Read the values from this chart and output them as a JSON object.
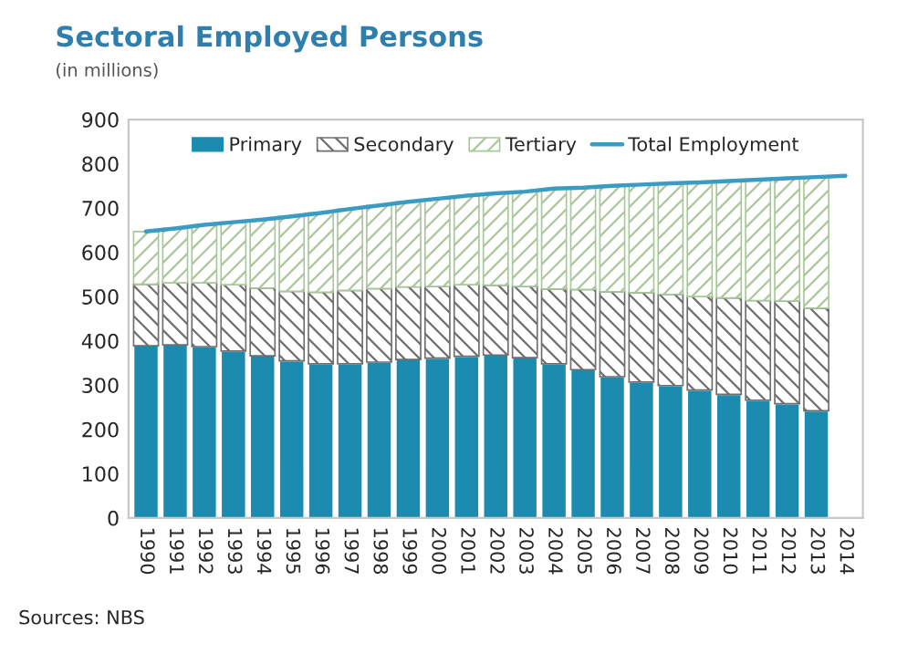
{
  "chart_data": {
    "type": "bar",
    "title": "Sectoral Employed Persons",
    "subtitle": "(in millions)",
    "categories": [
      "1990",
      "1991",
      "1992",
      "1993",
      "1994",
      "1995",
      "1996",
      "1997",
      "1998",
      "1999",
      "2000",
      "2001",
      "2002",
      "2003",
      "2004",
      "2005",
      "2006",
      "2007",
      "2008",
      "2009",
      "2010",
      "2011",
      "2012",
      "2013",
      "2014"
    ],
    "stacked": true,
    "series": [
      {
        "name": "Primary",
        "color": "#1b8bb0",
        "values": [
          389,
          391,
          387,
          377,
          366,
          355,
          348,
          348,
          352,
          358,
          361,
          365,
          368,
          362,
          348,
          335,
          319,
          307,
          299,
          289,
          279,
          266,
          258,
          242,
          null
        ]
      },
      {
        "name": "Secondary",
        "color": "#6e6e6e",
        "values": [
          139,
          140,
          144,
          150,
          153,
          157,
          162,
          166,
          166,
          164,
          162,
          162,
          158,
          161,
          169,
          181,
          192,
          202,
          206,
          211,
          218,
          225,
          232,
          232,
          null
        ]
      },
      {
        "name": "Tertiary",
        "color": "#a9c79a",
        "values": [
          119,
          123,
          131,
          141,
          155,
          169,
          179,
          184,
          188,
          192,
          198,
          201,
          207,
          214,
          227,
          230,
          239,
          244,
          251,
          258,
          264,
          273,
          277,
          296,
          null
        ]
      },
      {
        "name": "Total Employment",
        "type": "line",
        "color": "#3a9cc2",
        "values": [
          647,
          654,
          662,
          668,
          674,
          681,
          689,
          698,
          706,
          714,
          721,
          728,
          733,
          737,
          744,
          746,
          750,
          753,
          756,
          758,
          761,
          764,
          767,
          770,
          773
        ]
      }
    ],
    "ylim": [
      0,
      900
    ],
    "yticks": [
      0,
      100,
      200,
      300,
      400,
      500,
      600,
      700,
      800,
      900
    ],
    "grid": false,
    "legend": "top",
    "marker": "none",
    "line_style": "solid",
    "annotations": [
      "Sources: NBS"
    ]
  }
}
